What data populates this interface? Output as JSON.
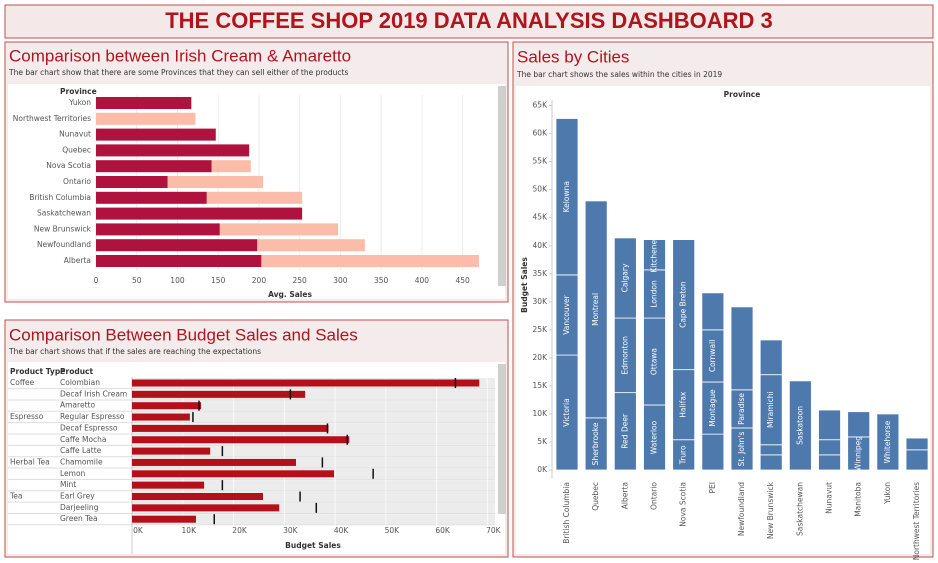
{
  "header": {
    "title": "THE COFFEE SHOP 2019 DATA ANALYSIS DASHBOARD 3"
  },
  "chart_data": [
    {
      "type": "hbar",
      "stacked": true,
      "title": "Comparison between Irish Cream & Amaretto",
      "subtitle": "The bar chart show that there are some Provinces that they can sell either of the products",
      "axis_header": "Province",
      "xlabel": "Avg. Sales",
      "categories": [
        "Yukon",
        "Northwest Territories",
        "Nunavut",
        "Quebec",
        "Nova Scotia",
        "Ontario",
        "British Columbia",
        "Saskatchewan",
        "New Brunswick",
        "Newfoundland",
        "Alberta"
      ],
      "series": [
        {
          "color": "#b0123f",
          "values": [
            117,
            null,
            147,
            188,
            142,
            88,
            136,
            253,
            152,
            198,
            203
          ]
        },
        {
          "color": "#fbbcaa",
          "values": [
            null,
            122,
            null,
            null,
            48,
            117,
            117,
            null,
            145,
            132,
            267
          ]
        }
      ],
      "xlim": [
        0,
        475
      ],
      "xticks": [
        0,
        50,
        100,
        150,
        200,
        250,
        300,
        350,
        400,
        450
      ],
      "grid": true
    },
    {
      "type": "bullet",
      "title": "Comparison Between Budget Sales and Sales",
      "subtitle": "The bar chart shows that if the sales are reaching the expectations",
      "column_headers": [
        "Product Type",
        "Product"
      ],
      "xlabel": "Budget Sales",
      "product_types": [
        "Coffee",
        null,
        null,
        "Espresso",
        null,
        null,
        null,
        "Herbal Tea",
        null,
        null,
        "Tea",
        null,
        null
      ],
      "categories": [
        "Colombian",
        "Decaf Irish Cream",
        "Amaretto",
        "Regular Espresso",
        "Decaf Espresso",
        "Caffe Mocha",
        "Caffe Latte",
        "Chamomile",
        "Lemon",
        "Mint",
        "Earl Grey",
        "Darjeeling",
        "Green Tea"
      ],
      "series": [
        {
          "style": "bar",
          "color": "#b3101a",
          "values": [
            68400,
            34100,
            13600,
            11400,
            38700,
            42800,
            15400,
            32300,
            39800,
            14200,
            25800,
            29000,
            12600
          ]
        },
        {
          "style": "tick",
          "color": "#111111",
          "values": [
            63700,
            31200,
            13200,
            12000,
            38500,
            42400,
            17800,
            37500,
            47500,
            17800,
            33100,
            36300,
            16200
          ]
        }
      ],
      "xlim": [
        0,
        71500
      ],
      "xticks": [
        {
          "value": 0,
          "label": "0K"
        },
        {
          "value": 10000,
          "label": "10K"
        },
        {
          "value": 20000,
          "label": "20K"
        },
        {
          "value": 30000,
          "label": "30K"
        },
        {
          "value": 40000,
          "label": "40K"
        },
        {
          "value": 50000,
          "label": "50K"
        },
        {
          "value": 60000,
          "label": "60K"
        },
        {
          "value": 70000,
          "label": "70K"
        }
      ]
    },
    {
      "type": "stacked-bar",
      "title": "Sales by Cities",
      "subtitle": "The bar chart shows the sales within the cities in 2019",
      "axis_header": "Province",
      "ylabel": "Budget Sales",
      "color": "#4e79ad",
      "categories": [
        "British Columbia",
        "Quebec",
        "Alberta",
        "Ontario",
        "Nova Scotia",
        "PEI",
        "Newfoundland",
        "New Brunswick",
        "Saskatchewan",
        "Nunavut",
        "Manitoba",
        "Yukon",
        "Northwest Territories"
      ],
      "segments": [
        [
          {
            "label": "Victoria",
            "value": 20500
          },
          {
            "label": "Vancouver",
            "value": 14300
          },
          {
            "label": "Kelowna",
            "value": 27900
          }
        ],
        [
          {
            "label": "Sherbrooke",
            "value": 9300
          },
          {
            "label": "Montreal",
            "value": 38700
          }
        ],
        [
          {
            "label": "Red Deer",
            "value": 13800
          },
          {
            "label": "Edmonton",
            "value": 13300
          },
          {
            "label": "Calgary",
            "value": 14300
          }
        ],
        [
          {
            "label": "Waterloo",
            "value": 11600
          },
          {
            "label": "Ottawa",
            "value": 15500
          },
          {
            "label": "London",
            "value": 8600
          },
          {
            "label": "Kitchener",
            "value": 5400
          }
        ],
        [
          {
            "label": "Truro",
            "value": 5400
          },
          {
            "label": "Halifax",
            "value": 12500
          },
          {
            "label": "Cape Breton",
            "value": 23200
          }
        ],
        [
          {
            "label": null,
            "value": 6400
          },
          {
            "label": "Montague",
            "value": 9300
          },
          {
            "label": "Cornwall",
            "value": 9300
          },
          {
            "label": null,
            "value": 6600
          }
        ],
        [
          {
            "label": "St. John's",
            "value": 7500
          },
          {
            "label": "Paradise",
            "value": 6800
          },
          {
            "label": null,
            "value": 14800
          }
        ],
        [
          {
            "label": null,
            "value": 2700
          },
          {
            "label": null,
            "value": 1800
          },
          {
            "label": "Miramichi",
            "value": 12500
          },
          {
            "label": null,
            "value": 6200
          }
        ],
        [
          {
            "label": "Saskatoon",
            "value": 15900
          }
        ],
        [
          {
            "label": null,
            "value": 2700
          },
          {
            "label": null,
            "value": 2700
          },
          {
            "label": null,
            "value": 5300
          }
        ],
        [
          {
            "label": "Winnipeg",
            "value": 5900
          },
          {
            "label": null,
            "value": 4500
          }
        ],
        [
          {
            "label": "Whitehorse",
            "value": 10000
          }
        ],
        [
          {
            "label": null,
            "value": 3600
          },
          {
            "label": null,
            "value": 2100
          }
        ]
      ],
      "ylim": [
        0,
        66000
      ],
      "yticks": [
        {
          "value": 0,
          "label": "0K"
        },
        {
          "value": 5000,
          "label": "5K"
        },
        {
          "value": 10000,
          "label": "10K"
        },
        {
          "value": 15000,
          "label": "15K"
        },
        {
          "value": 20000,
          "label": "20K"
        },
        {
          "value": 25000,
          "label": "25K"
        },
        {
          "value": 30000,
          "label": "30K"
        },
        {
          "value": 35000,
          "label": "35K"
        },
        {
          "value": 40000,
          "label": "40K"
        },
        {
          "value": 45000,
          "label": "45K"
        },
        {
          "value": 50000,
          "label": "50K"
        },
        {
          "value": 55000,
          "label": "55K"
        },
        {
          "value": 60000,
          "label": "60K"
        },
        {
          "value": 65000,
          "label": "65K"
        }
      ]
    }
  ]
}
